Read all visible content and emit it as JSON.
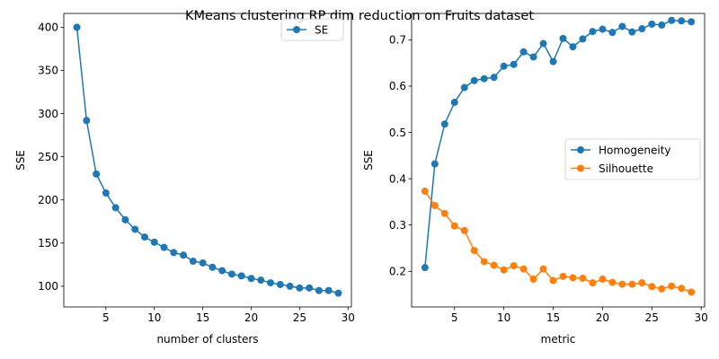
{
  "suptitle": "KMeans clustering RP dim reduction on Fruits dataset",
  "colors": {
    "blue": "#1f77b4",
    "orange": "#ff7f0e"
  },
  "chart_data": [
    {
      "type": "line",
      "marker": "circle",
      "xlabel": "number of clusters",
      "ylabel": "SSE",
      "xlim": [
        0.65,
        30.35
      ],
      "ylim": [
        76,
        416
      ],
      "xticks": [
        5,
        10,
        15,
        20,
        25,
        30
      ],
      "yticks": [
        100,
        150,
        200,
        250,
        300,
        350,
        400
      ],
      "legend": "top-right",
      "grid": false,
      "x": [
        2,
        3,
        4,
        5,
        6,
        7,
        8,
        9,
        10,
        11,
        12,
        13,
        14,
        15,
        16,
        17,
        18,
        19,
        20,
        21,
        22,
        23,
        24,
        25,
        26,
        27,
        28,
        29
      ],
      "series": [
        {
          "name": "SE",
          "color": "#1f77b4",
          "values": [
            400,
            292,
            230,
            208,
            191,
            177,
            166,
            157,
            151,
            145,
            139,
            136,
            129,
            127,
            122,
            118,
            114,
            112,
            109,
            107,
            104,
            102,
            100,
            98,
            98,
            95,
            95,
            92
          ]
        }
      ]
    },
    {
      "type": "line",
      "marker": "circle",
      "xlabel": "metric",
      "ylabel": "SSE",
      "xlim": [
        0.65,
        30.35
      ],
      "ylim": [
        0.123,
        0.757
      ],
      "xticks": [
        5,
        10,
        15,
        20,
        25,
        30
      ],
      "yticks": [
        0.2,
        0.3,
        0.4,
        0.5,
        0.6,
        0.7
      ],
      "legend": "center-right",
      "grid": false,
      "x": [
        2,
        3,
        4,
        5,
        6,
        7,
        8,
        9,
        10,
        11,
        12,
        13,
        14,
        15,
        16,
        17,
        18,
        19,
        20,
        21,
        22,
        23,
        24,
        25,
        26,
        27,
        28,
        29
      ],
      "series": [
        {
          "name": "Homogeneity",
          "color": "#1f77b4",
          "values": [
            0.208,
            0.432,
            0.518,
            0.565,
            0.597,
            0.612,
            0.616,
            0.619,
            0.643,
            0.647,
            0.674,
            0.663,
            0.692,
            0.653,
            0.703,
            0.685,
            0.702,
            0.718,
            0.723,
            0.716,
            0.729,
            0.717,
            0.724,
            0.734,
            0.732,
            0.742,
            0.741,
            0.739
          ]
        },
        {
          "name": "Silhouette",
          "color": "#ff7f0e",
          "values": [
            0.373,
            0.342,
            0.325,
            0.298,
            0.288,
            0.245,
            0.221,
            0.213,
            0.203,
            0.212,
            0.205,
            0.183,
            0.205,
            0.18,
            0.189,
            0.186,
            0.185,
            0.175,
            0.183,
            0.176,
            0.172,
            0.172,
            0.175,
            0.167,
            0.162,
            0.168,
            0.163,
            0.155
          ]
        }
      ]
    }
  ]
}
